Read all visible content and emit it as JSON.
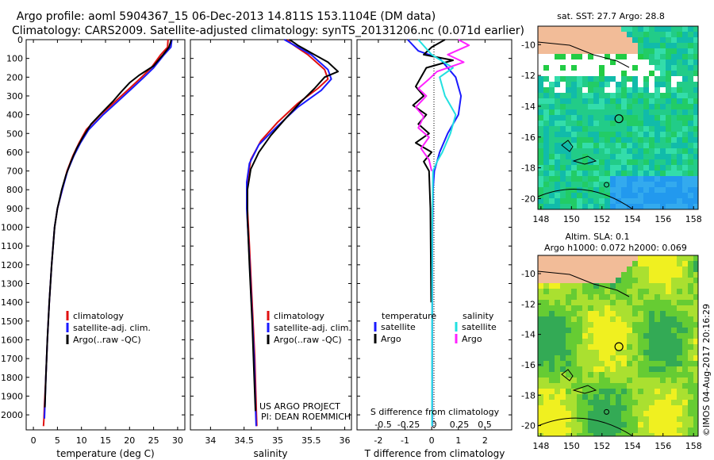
{
  "header": {
    "line1": "Argo profile: aoml 5904367_15 06-Dec-2013 14.811S 153.1104E (DM data)",
    "line2": "Climatology: CARS2009. Satellite-adjusted climatology: synTS_20131206.nc (0.071d earlier)"
  },
  "colors": {
    "climatology": "#e01010",
    "satellite": "#1a1aff",
    "argo": "#000000",
    "sat_salinity": "#22e0e0",
    "argo_salinity": "#ff22ff"
  },
  "chart_data": [
    {
      "type": "line",
      "title": "",
      "xlabel": "temperature (deg C)",
      "ylabel": "",
      "xlim": [
        -1.5,
        31.5
      ],
      "ylim": [
        0,
        2080
      ],
      "xticks": [
        0,
        5,
        10,
        15,
        20,
        25,
        30
      ],
      "yticks": [
        0,
        100,
        200,
        300,
        400,
        500,
        600,
        700,
        800,
        900,
        1000,
        1100,
        1200,
        1300,
        1400,
        1500,
        1600,
        1700,
        1800,
        1900,
        2000
      ],
      "legend": [
        "climatology",
        "satellite-adj. clim.",
        "Argo(..raw -QC)"
      ],
      "series": [
        {
          "name": "climatology",
          "color": "#e01010",
          "x": [
            28.0,
            27.9,
            26.5,
            24.5,
            22.5,
            20.0,
            17.0,
            14.0,
            11.0,
            9.5,
            8.2,
            7.0,
            6.0,
            5.0,
            4.4,
            3.8,
            3.3,
            2.9,
            2.6,
            2.3,
            2.2,
            2.1
          ],
          "y": [
            0,
            40,
            80,
            150,
            200,
            260,
            330,
            400,
            480,
            550,
            620,
            700,
            800,
            900,
            1000,
            1200,
            1400,
            1600,
            1800,
            1950,
            2020,
            2060
          ]
        },
        {
          "name": "satellite-adj. clim.",
          "color": "#1a1aff",
          "x": [
            28.8,
            28.6,
            27.2,
            25.0,
            23.0,
            20.5,
            17.5,
            14.5,
            11.5,
            9.8,
            8.4,
            7.1,
            6.0,
            5.0,
            4.4,
            3.8,
            3.3,
            2.9,
            2.6,
            2.4,
            2.3
          ],
          "y": [
            0,
            40,
            80,
            150,
            200,
            260,
            330,
            400,
            480,
            550,
            620,
            700,
            800,
            900,
            1000,
            1200,
            1400,
            1600,
            1800,
            1950,
            2020
          ]
        },
        {
          "name": "Argo(..raw -QC)",
          "color": "#000000",
          "x": [
            28.7,
            28.2,
            27.0,
            25.0,
            22.0,
            20.0,
            18.2,
            16.5,
            14.2,
            12.0,
            10.3,
            9.0,
            7.8,
            6.8,
            5.9,
            5.0,
            4.4,
            3.8,
            3.3,
            2.9,
            2.6,
            2.4
          ],
          "y": [
            0,
            40,
            80,
            140,
            190,
            230,
            280,
            330,
            390,
            450,
            520,
            580,
            650,
            720,
            800,
            900,
            1000,
            1200,
            1400,
            1600,
            1800,
            1960
          ]
        }
      ]
    },
    {
      "type": "line",
      "title": "",
      "xlabel": "salinity",
      "ylabel": "",
      "xlim": [
        33.7,
        36.1
      ],
      "ylim": [
        0,
        2080
      ],
      "xticks": [
        34,
        34.5,
        35,
        35.5,
        36
      ],
      "xtick_labels": [
        "34",
        "34.5",
        "35",
        "35.5",
        "36"
      ],
      "legend": [
        "climatology",
        "satellite-adj. clim.",
        "Argo(..raw -QC)"
      ],
      "series": [
        {
          "name": "climatology",
          "color": "#e01010",
          "x": [
            35.15,
            35.2,
            35.45,
            35.7,
            35.75,
            35.6,
            35.3,
            35.0,
            34.75,
            34.6,
            34.55,
            34.55,
            34.58,
            34.62,
            34.66,
            34.68,
            34.69
          ],
          "y": [
            0,
            20,
            80,
            160,
            210,
            260,
            340,
            440,
            540,
            640,
            750,
            900,
            1100,
            1400,
            1700,
            1950,
            2060
          ]
        },
        {
          "name": "satellite-adj. clim.",
          "color": "#1a1aff",
          "x": [
            35.1,
            35.2,
            35.5,
            35.75,
            35.8,
            35.65,
            35.3,
            35.0,
            34.72,
            34.58,
            34.54,
            34.54,
            34.57,
            34.61,
            34.65,
            34.67,
            34.68
          ],
          "y": [
            0,
            20,
            80,
            160,
            210,
            270,
            360,
            460,
            560,
            660,
            760,
            900,
            1100,
            1400,
            1700,
            1950,
            2060
          ]
        },
        {
          "name": "Argo(..raw -QC)",
          "color": "#000000",
          "x": [
            35.18,
            35.3,
            35.5,
            35.75,
            35.9,
            35.7,
            35.55,
            35.35,
            35.12,
            34.9,
            34.72,
            34.6,
            34.55,
            34.55,
            34.58,
            34.62,
            34.65,
            34.67
          ],
          "y": [
            0,
            30,
            70,
            120,
            170,
            200,
            260,
            330,
            420,
            510,
            600,
            690,
            800,
            950,
            1200,
            1500,
            1800,
            1980
          ]
        }
      ]
    },
    {
      "type": "line",
      "title": "S difference from climatology",
      "xlabel": "T difference from climatology",
      "ylabel": "",
      "xlim": [
        -2.8,
        3.0
      ],
      "ylim": [
        0,
        2080
      ],
      "xticks": [
        -2,
        -1,
        0,
        1,
        2
      ],
      "xtick_labels": [
        "-2",
        "-1",
        "0",
        "1",
        "2"
      ],
      "sticks": [
        -0.5,
        -0.25,
        0,
        0.25,
        0.5
      ],
      "stick_labels": [
        "-0.5",
        "-0.25",
        "0",
        "0.25",
        "0.5"
      ],
      "legend_titles": [
        "temperature",
        "salinity"
      ],
      "legend": [
        "satellite",
        "Argo",
        "satellite",
        "Argo"
      ],
      "series": [
        {
          "name": "temperature satellite",
          "color": "#1a1aff",
          "x": [
            -0.9,
            -0.5,
            0.3,
            0.9,
            1.1,
            1.0,
            0.6,
            0.3,
            0.1,
            0.05,
            0.03,
            0.02,
            0.02
          ],
          "y": [
            0,
            60,
            100,
            200,
            300,
            400,
            500,
            600,
            700,
            800,
            1000,
            1500,
            2060
          ]
        },
        {
          "name": "temperature Argo",
          "color": "#000000",
          "x": [
            0.5,
            0.0,
            -0.3,
            0.8,
            -0.2,
            -0.4,
            -0.6,
            -0.3,
            -0.7,
            -0.2,
            -0.5,
            -0.1,
            -0.6,
            0.0,
            -0.3,
            -0.1,
            -0.05,
            -0.02
          ],
          "y": [
            0,
            40,
            80,
            110,
            150,
            200,
            250,
            300,
            350,
            400,
            450,
            500,
            550,
            600,
            650,
            700,
            900,
            1400
          ]
        },
        {
          "name": "salinity satellite",
          "color": "#22e0e0",
          "x": [
            -0.5,
            0.0,
            0.8,
            0.3,
            0.5,
            0.9,
            0.7,
            0.4,
            0.2,
            0.05,
            0.02,
            0.01
          ],
          "y": [
            0,
            80,
            150,
            200,
            300,
            400,
            500,
            600,
            650,
            700,
            1000,
            2060
          ]
        },
        {
          "name": "salinity Argo",
          "color": "#ff22ff",
          "x": [
            1.0,
            1.4,
            0.6,
            1.2,
            0.2,
            -0.1,
            -0.5,
            -0.2,
            -0.6,
            -0.3,
            -0.5,
            -0.1,
            -0.4,
            -0.1,
            0.0
          ],
          "y": [
            0,
            30,
            80,
            120,
            170,
            210,
            260,
            300,
            360,
            410,
            470,
            520,
            580,
            640,
            700
          ]
        }
      ]
    },
    {
      "type": "heatmap",
      "title": "sat. SST: 27.7 Argo: 28.8",
      "xlim": [
        147.8,
        158.3
      ],
      "ylim": [
        -20.7,
        -8.8
      ],
      "xticks": [
        148,
        150,
        152,
        154,
        156,
        158
      ],
      "yticks": [
        -10,
        -12,
        -14,
        -16,
        -18,
        -20
      ],
      "argo_position": [
        153.11,
        -14.81
      ]
    },
    {
      "type": "heatmap",
      "title": "Altim. SLA: 0.1",
      "subtitle": "Argo h1000: 0.072 h2000: 0.069",
      "xlim": [
        147.8,
        158.3
      ],
      "ylim": [
        -20.7,
        -8.8
      ],
      "xticks": [
        148,
        150,
        152,
        154,
        156,
        158
      ],
      "yticks": [
        -10,
        -12,
        -14,
        -16,
        -18,
        -20
      ],
      "argo_position": [
        153.11,
        -14.81
      ]
    }
  ],
  "footer": {
    "project_line1": "US ARGO PROJECT",
    "project_line2": "PI: DEAN ROEMMICH",
    "credit": "©IMOS 04-Aug-2017 20:16:29"
  }
}
